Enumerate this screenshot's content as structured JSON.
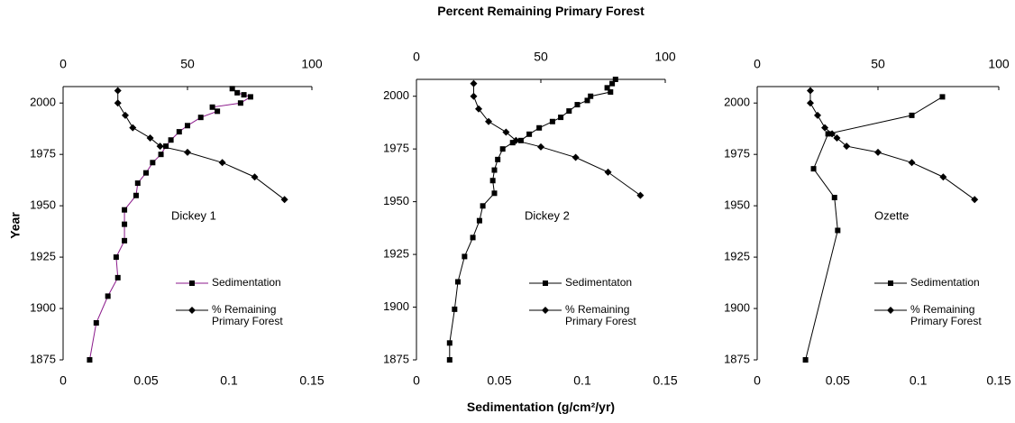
{
  "chart_data": [
    {
      "type": "line",
      "annotation": "Dickey 1",
      "ylabel": "Year",
      "xlim": [
        0,
        0.15
      ],
      "xticks": [
        0,
        0.05,
        0.1,
        0.15
      ],
      "x2lim": [
        0,
        100
      ],
      "x2ticks": [
        0,
        50,
        100
      ],
      "ylim": [
        1875,
        2008
      ],
      "yticks": [
        1875,
        1900,
        1925,
        1950,
        1975,
        2000
      ],
      "series": [
        {
          "name": "Sedimentation",
          "color": "#8b1a8b",
          "marker": "square",
          "marker_color": "#000000",
          "axis": "x",
          "x": [
            0.102,
            0.105,
            0.109,
            0.113,
            0.107,
            0.09,
            0.093,
            0.083,
            0.075,
            0.07,
            0.065,
            0.062,
            0.059,
            0.054,
            0.05,
            0.045,
            0.044,
            0.037,
            0.037,
            0.037,
            0.032,
            0.033,
            0.027,
            0.02,
            0.016
          ],
          "y": [
            2007,
            2005,
            2004,
            2003,
            2000,
            1998,
            1996,
            1993,
            1989,
            1986,
            1982,
            1979,
            1975,
            1971,
            1966,
            1961,
            1955,
            1948,
            1941,
            1933,
            1925,
            1915,
            1906,
            1893,
            1875
          ]
        },
        {
          "name": "% Remaining Primary Forest",
          "color": "#000000",
          "marker": "diamond",
          "marker_color": "#000000",
          "axis": "x2",
          "x": [
            22,
            22,
            25,
            28,
            35,
            39,
            50,
            64,
            77,
            89
          ],
          "y": [
            2006,
            2000,
            1994,
            1988,
            1983,
            1979,
            1976,
            1971,
            1964,
            1953
          ]
        }
      ]
    },
    {
      "type": "line",
      "annotation": "Dickey 2",
      "xlabel": "Sedimentation (g/cm²/yr)",
      "x2label": "Percent Remaining Primary Forest",
      "xlim": [
        0,
        0.15
      ],
      "xticks": [
        0,
        0.05,
        0.1,
        0.15
      ],
      "x2lim": [
        0,
        100
      ],
      "x2ticks": [
        0,
        50,
        100
      ],
      "ylim": [
        1875,
        2008
      ],
      "yticks": [
        1875,
        1900,
        1925,
        1950,
        1975,
        2000
      ],
      "series": [
        {
          "name": "Sedimentaton",
          "color": "#000000",
          "marker": "square",
          "marker_color": "#000000",
          "axis": "x",
          "x": [
            0.12,
            0.118,
            0.115,
            0.117,
            0.105,
            0.103,
            0.097,
            0.092,
            0.087,
            0.082,
            0.074,
            0.068,
            0.063,
            0.058,
            0.052,
            0.049,
            0.047,
            0.046,
            0.047,
            0.04,
            0.038,
            0.034,
            0.029,
            0.025,
            0.023,
            0.02,
            0.02
          ],
          "y": [
            2008,
            2006,
            2004,
            2002,
            2000,
            1998,
            1996,
            1993,
            1990,
            1988,
            1985,
            1982,
            1979,
            1978,
            1975,
            1970,
            1965,
            1960,
            1954,
            1948,
            1941,
            1933,
            1924,
            1912,
            1899,
            1883,
            1875
          ]
        },
        {
          "name": "% Remaining Primary Forest",
          "color": "#000000",
          "marker": "diamond",
          "marker_color": "#000000",
          "axis": "x2",
          "x": [
            23,
            23,
            25,
            29,
            36,
            40,
            50,
            64,
            77,
            90
          ],
          "y": [
            2006,
            2000,
            1994,
            1988,
            1983,
            1979,
            1976,
            1971,
            1964,
            1953
          ]
        }
      ]
    },
    {
      "type": "line",
      "annotation": "Ozette",
      "xlim": [
        0,
        0.15
      ],
      "xticks": [
        0,
        0.05,
        0.1,
        0.15
      ],
      "x2lim": [
        0,
        100
      ],
      "x2ticks": [
        0,
        50,
        100
      ],
      "ylim": [
        1875,
        2008
      ],
      "yticks": [
        1875,
        1900,
        1925,
        1950,
        1975,
        2000
      ],
      "series": [
        {
          "name": "Sedimentation",
          "color": "#000000",
          "marker": "square",
          "marker_color": "#000000",
          "axis": "x",
          "x": [
            0.115,
            0.096,
            0.044,
            0.035,
            0.048,
            0.05,
            0.03
          ],
          "y": [
            2003,
            1994,
            1985,
            1968,
            1954,
            1938,
            1875
          ]
        },
        {
          "name": "% Remaining Primary Forest",
          "color": "#000000",
          "marker": "diamond",
          "marker_color": "#000000",
          "axis": "x2",
          "x": [
            22,
            22,
            25,
            28,
            31,
            33,
            37,
            50,
            64,
            77,
            90
          ],
          "y": [
            2006,
            2000,
            1994,
            1988,
            1985,
            1983,
            1979,
            1976,
            1971,
            1964,
            1953
          ]
        }
      ]
    }
  ]
}
